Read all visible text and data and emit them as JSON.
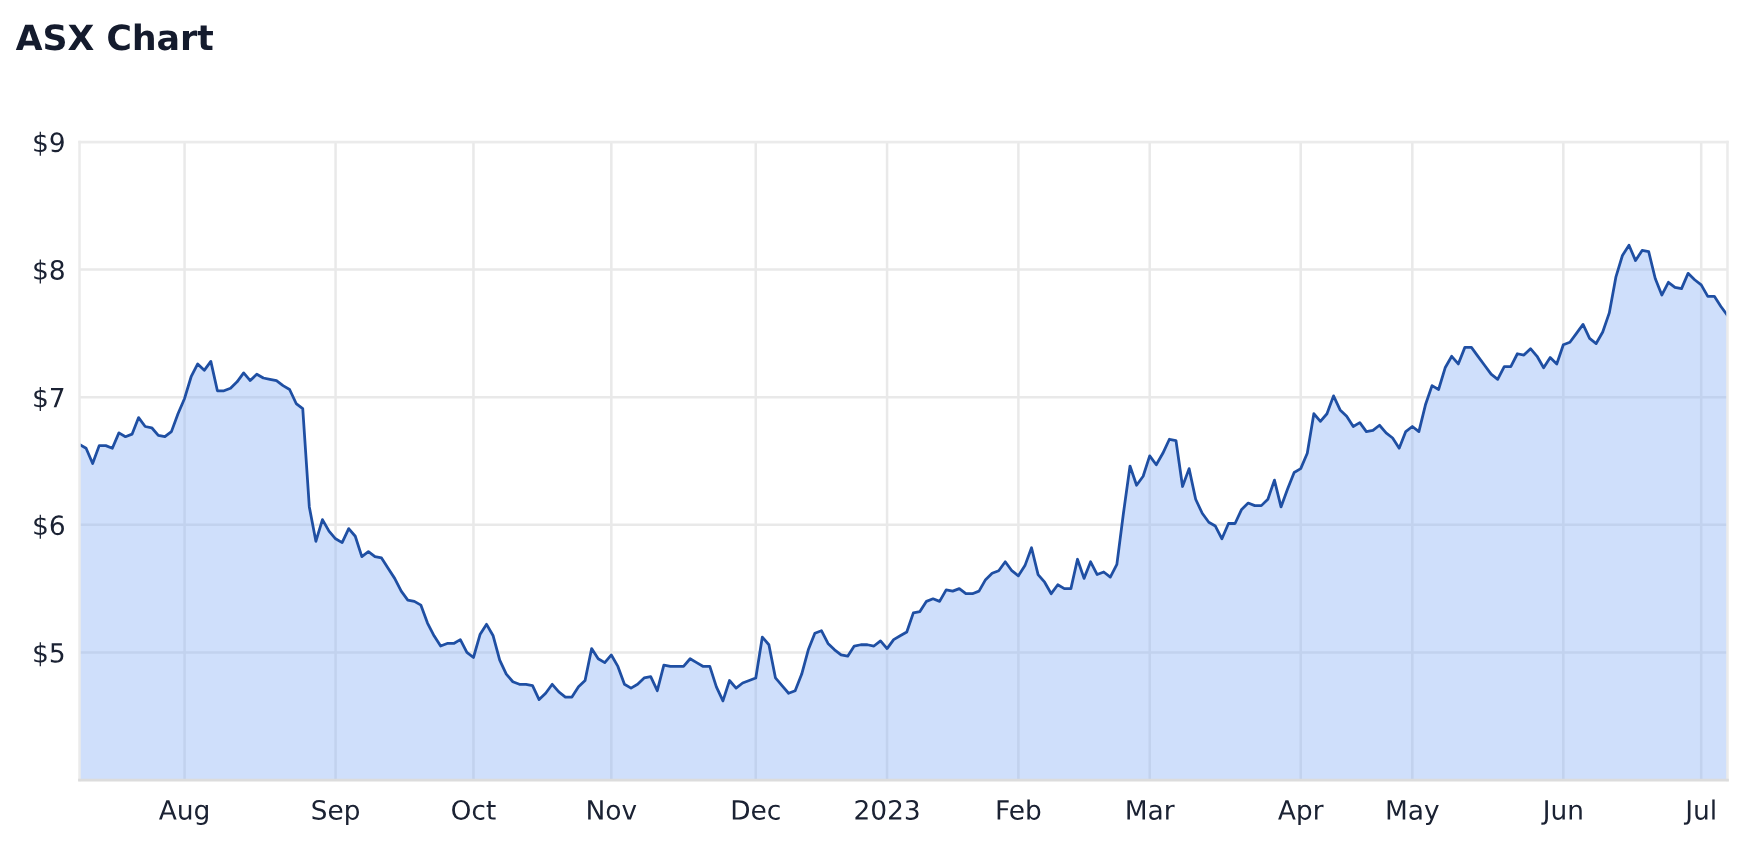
{
  "chart_data": {
    "type": "area",
    "title": "ASX Chart",
    "color": "#1f4fa3",
    "categories": [
      null,
      null,
      null,
      null,
      null,
      null,
      null,
      null,
      null,
      null,
      null,
      null,
      null,
      null,
      null,
      null,
      "Aug",
      null,
      null,
      null,
      null,
      null,
      null,
      null,
      null,
      null,
      null,
      null,
      null,
      null,
      null,
      null,
      null,
      null,
      null,
      null,
      null,
      null,
      null,
      "Sep",
      null,
      null,
      null,
      null,
      null,
      null,
      null,
      null,
      null,
      null,
      null,
      null,
      null,
      null,
      null,
      null,
      null,
      null,
      null,
      null,
      "Oct",
      null,
      null,
      null,
      null,
      null,
      null,
      null,
      null,
      null,
      null,
      null,
      null,
      null,
      null,
      null,
      null,
      null,
      null,
      null,
      null,
      "Nov",
      null,
      null,
      null,
      null,
      null,
      null,
      null,
      null,
      null,
      null,
      null,
      null,
      null,
      null,
      null,
      null,
      null,
      null,
      null,
      null,
      null,
      "Dec",
      null,
      null,
      null,
      null,
      null,
      null,
      null,
      null,
      null,
      null,
      null,
      null,
      null,
      null,
      null,
      null,
      null,
      null,
      null,
      "2023",
      null,
      null,
      null,
      null,
      null,
      null,
      null,
      null,
      null,
      null,
      null,
      null,
      null,
      null,
      null,
      null,
      null,
      null,
      null,
      "Feb",
      null,
      null,
      null,
      null,
      null,
      null,
      null,
      null,
      null,
      null,
      null,
      null,
      null,
      null,
      null,
      null,
      null,
      null,
      null,
      "Mar",
      null,
      null,
      null,
      null,
      null,
      null,
      null,
      null,
      null,
      null,
      null,
      null,
      null,
      null,
      null,
      null,
      null,
      null,
      null,
      null,
      null,
      null,
      "Apr",
      null,
      null,
      null,
      null,
      null,
      null,
      null,
      null,
      null,
      null,
      null,
      null,
      null,
      null,
      null,
      null,
      "May",
      null,
      null,
      null,
      null,
      null,
      null,
      null,
      null,
      null,
      null,
      null,
      null,
      null,
      null,
      null,
      null,
      null,
      null,
      null,
      null,
      null,
      null,
      "Jun",
      null,
      null,
      null,
      null,
      null,
      null,
      null,
      null,
      null,
      null,
      null,
      null,
      null,
      null,
      null,
      null,
      null,
      null,
      null,
      null,
      "Jul",
      null,
      null,
      null,
      null
    ],
    "values": [
      6.63,
      6.6,
      6.48,
      6.62,
      6.62,
      6.6,
      6.72,
      6.69,
      6.71,
      6.84,
      6.77,
      6.76,
      6.7,
      6.69,
      6.73,
      6.87,
      6.99,
      7.16,
      7.26,
      7.21,
      7.28,
      7.05,
      7.05,
      7.07,
      7.12,
      7.19,
      7.13,
      7.18,
      7.15,
      7.14,
      7.13,
      7.09,
      7.06,
      6.95,
      6.91,
      6.14,
      5.87,
      6.04,
      5.95,
      5.89,
      5.86,
      5.97,
      5.91,
      5.75,
      5.79,
      5.75,
      5.74,
      5.66,
      5.58,
      5.48,
      5.41,
      5.4,
      5.37,
      5.23,
      5.13,
      5.05,
      5.07,
      5.07,
      5.1,
      5.0,
      4.96,
      5.14,
      5.22,
      5.13,
      4.94,
      4.83,
      4.77,
      4.75,
      4.75,
      4.74,
      4.63,
      4.68,
      4.75,
      4.69,
      4.65,
      4.65,
      4.73,
      4.78,
      5.03,
      4.95,
      4.92,
      4.98,
      4.89,
      4.75,
      4.72,
      4.75,
      4.8,
      4.81,
      4.7,
      4.9,
      4.89,
      4.89,
      4.89,
      4.95,
      4.92,
      4.89,
      4.89,
      4.73,
      4.62,
      4.78,
      4.72,
      4.76,
      4.78,
      4.8,
      5.12,
      5.06,
      4.8,
      4.74,
      4.68,
      4.7,
      4.83,
      5.02,
      5.15,
      5.17,
      5.07,
      5.02,
      4.98,
      4.97,
      5.05,
      5.06,
      5.06,
      5.05,
      5.09,
      5.03,
      5.1,
      5.13,
      5.16,
      5.31,
      5.32,
      5.4,
      5.42,
      5.4,
      5.49,
      5.48,
      5.5,
      5.46,
      5.46,
      5.48,
      5.57,
      5.62,
      5.64,
      5.71,
      5.64,
      5.6,
      5.68,
      5.82,
      5.61,
      5.55,
      5.46,
      5.53,
      5.5,
      5.5,
      5.73,
      5.58,
      5.71,
      5.61,
      5.63,
      5.59,
      5.69,
      6.09,
      6.46,
      6.31,
      6.38,
      6.54,
      6.47,
      6.56,
      6.67,
      6.66,
      6.3,
      6.44,
      6.2,
      6.09,
      6.02,
      5.99,
      5.89,
      6.01,
      6.01,
      6.12,
      6.17,
      6.15,
      6.15,
      6.2,
      6.35,
      6.14,
      6.28,
      6.41,
      6.44,
      6.56,
      6.87,
      6.81,
      6.87,
      7.01,
      6.9,
      6.85,
      6.77,
      6.8,
      6.73,
      6.74,
      6.78,
      6.72,
      6.68,
      6.6,
      6.73,
      6.77,
      6.73,
      6.94,
      7.09,
      7.06,
      7.23,
      7.32,
      7.26,
      7.39,
      7.39,
      7.32,
      7.25,
      7.18,
      7.14,
      7.24,
      7.24,
      7.34,
      7.33,
      7.38,
      7.32,
      7.23,
      7.31,
      7.26,
      7.41,
      7.43,
      7.5,
      7.57,
      7.46,
      7.42,
      7.51,
      7.66,
      7.94,
      8.11,
      8.19,
      8.07,
      8.15,
      8.14,
      7.93,
      7.8,
      7.9,
      7.86,
      7.85,
      7.97,
      7.92,
      7.88,
      7.79,
      7.79,
      7.71,
      7.64
    ],
    "ylim": [
      4,
      9
    ],
    "yticks": [
      {
        "value": 5,
        "label": "$5"
      },
      {
        "value": 6,
        "label": "$6"
      },
      {
        "value": 7,
        "label": "$7"
      },
      {
        "value": 8,
        "label": "$8"
      },
      {
        "value": 9,
        "label": "$9"
      }
    ],
    "grid": true
  }
}
